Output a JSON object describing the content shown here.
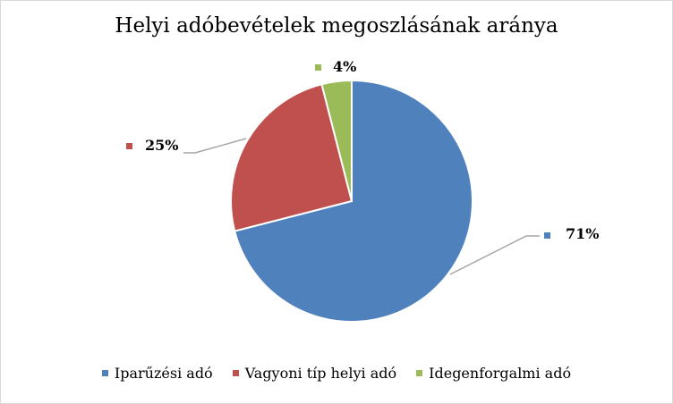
{
  "chart_data": {
    "type": "pie",
    "title": "Helyi adóbevételek megoszlásának aránya",
    "categories": [
      "Iparűzési adó",
      "Vagyoni típ helyi adó",
      "Idegenforgalmi adó"
    ],
    "values": [
      71,
      25,
      4
    ],
    "data_labels": [
      "71%",
      "25%",
      "4%"
    ],
    "colors": [
      "#4f81bd",
      "#c0504d",
      "#9bbb59"
    ],
    "legend_position": "bottom",
    "start_angle": "12 o'clock, clockwise"
  }
}
